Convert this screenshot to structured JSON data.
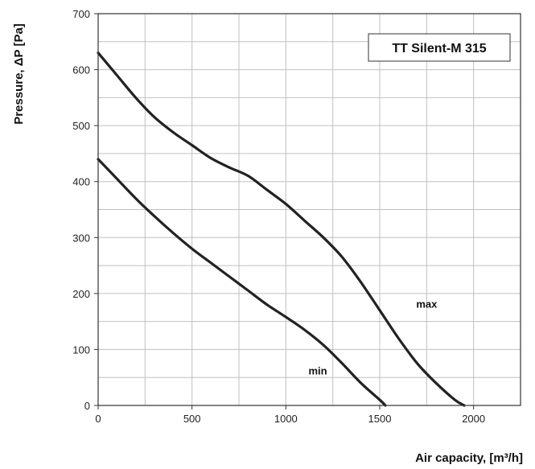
{
  "chart_data": {
    "type": "line",
    "title": "TT Silent-M 315",
    "xlabel": "Air capacity, [m³/h]",
    "ylabel": "Pressure, ΔP [Pa]",
    "xlim": [
      0,
      2250
    ],
    "ylim": [
      0,
      700
    ],
    "x_ticks": [
      0,
      500,
      1000,
      1500,
      2000
    ],
    "y_ticks": [
      0,
      100,
      200,
      300,
      400,
      500,
      600,
      700
    ],
    "x_grid_step": 250,
    "y_grid_step": 50,
    "grid": true,
    "colors": {
      "curve": "#222222",
      "grid": "#c0c0c0",
      "frame": "#333333",
      "background": "#ffffff"
    },
    "series": [
      {
        "name": "max",
        "x": [
          0,
          100,
          200,
          300,
          400,
          500,
          600,
          700,
          800,
          900,
          1000,
          1100,
          1200,
          1300,
          1400,
          1500,
          1600,
          1700,
          1800,
          1900,
          1950
        ],
        "y": [
          630,
          590,
          550,
          515,
          488,
          465,
          442,
          425,
          410,
          385,
          360,
          330,
          300,
          265,
          220,
          170,
          120,
          75,
          40,
          10,
          0
        ]
      },
      {
        "name": "min",
        "x": [
          0,
          100,
          200,
          300,
          400,
          500,
          600,
          700,
          800,
          900,
          1000,
          1100,
          1200,
          1300,
          1400,
          1500,
          1530
        ],
        "y": [
          440,
          405,
          370,
          338,
          308,
          280,
          255,
          230,
          205,
          180,
          158,
          135,
          108,
          75,
          40,
          10,
          0
        ]
      }
    ],
    "annotations": [
      {
        "text": "max",
        "x": 1750,
        "y": 175
      },
      {
        "text": "min",
        "x": 1170,
        "y": 55
      }
    ]
  }
}
